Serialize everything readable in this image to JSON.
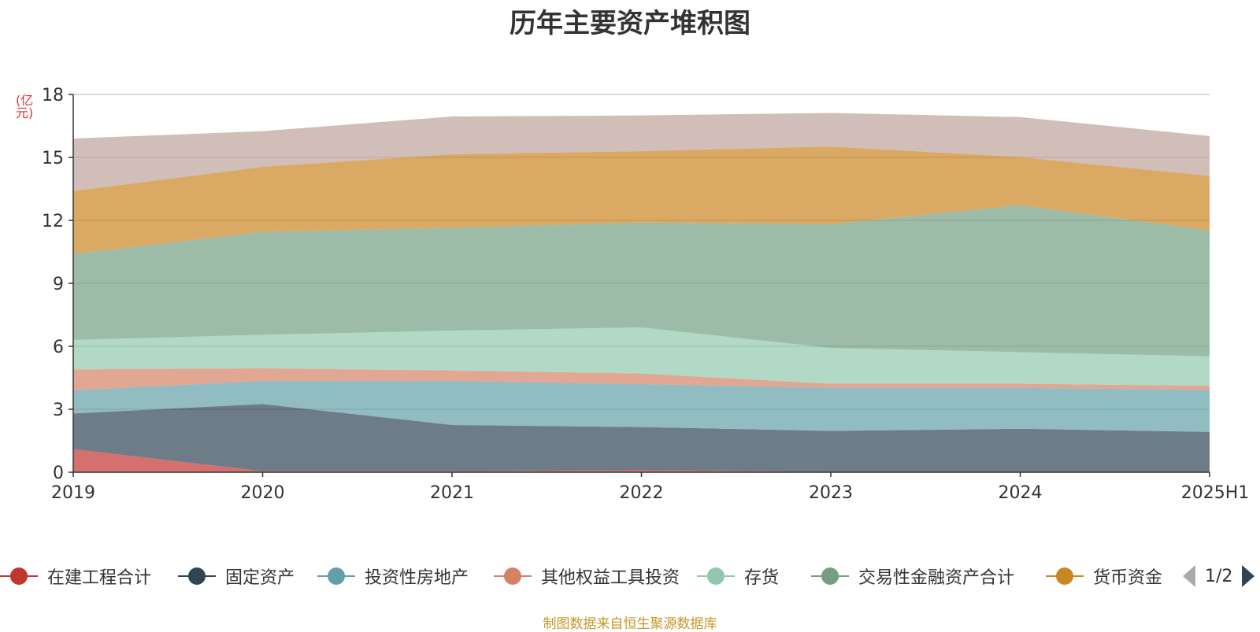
{
  "chart_data": {
    "type": "area",
    "stacked": true,
    "title": "历年主要资产堆积图",
    "unit_label": "(亿元)",
    "categories": [
      "2019",
      "2020",
      "2021",
      "2022",
      "2023",
      "2024",
      "2025H1"
    ],
    "ylim": [
      0,
      18
    ],
    "yticks": [
      "0",
      "3",
      "6",
      "9",
      "12",
      "15",
      "18"
    ],
    "grid": true,
    "legend_position": "bottom",
    "series": [
      {
        "name": "在建工程合计",
        "color": "#c23531",
        "values": [
          1.1,
          0.05,
          0.05,
          0.1,
          0.02,
          0.02,
          0.02
        ]
      },
      {
        "name": "固定资产",
        "color": "#2f4554",
        "values": [
          1.7,
          3.2,
          2.2,
          2.05,
          1.95,
          2.05,
          1.9
        ]
      },
      {
        "name": "投资性房地产",
        "color": "#61a0a8",
        "values": [
          1.1,
          1.1,
          2.1,
          2.05,
          2.05,
          1.95,
          2.0
        ]
      },
      {
        "name": "其他权益工具投资",
        "color": "#d48265",
        "values": [
          1.0,
          0.6,
          0.5,
          0.5,
          0.2,
          0.2,
          0.2
        ]
      },
      {
        "name": "存货",
        "color": "#91c7ae",
        "values": [
          1.4,
          1.6,
          1.9,
          2.2,
          1.7,
          1.5,
          1.4
        ]
      },
      {
        "name": "交易性金融资产合计",
        "color": "#749f83",
        "values": [
          4.1,
          4.9,
          4.9,
          5.0,
          5.9,
          7.0,
          6.0
        ]
      },
      {
        "name": "货币资金",
        "color": "#ca8622",
        "values": [
          3.0,
          3.1,
          3.5,
          3.4,
          3.7,
          2.3,
          2.6
        ]
      },
      {
        "name": "",
        "color": "#bda29a",
        "values": [
          2.5,
          1.7,
          1.8,
          1.7,
          1.6,
          1.9,
          1.9
        ]
      }
    ]
  },
  "legend": {
    "page_text": "1/2"
  },
  "footer": {
    "source": "制图数据来自恒生聚源数据库"
  }
}
